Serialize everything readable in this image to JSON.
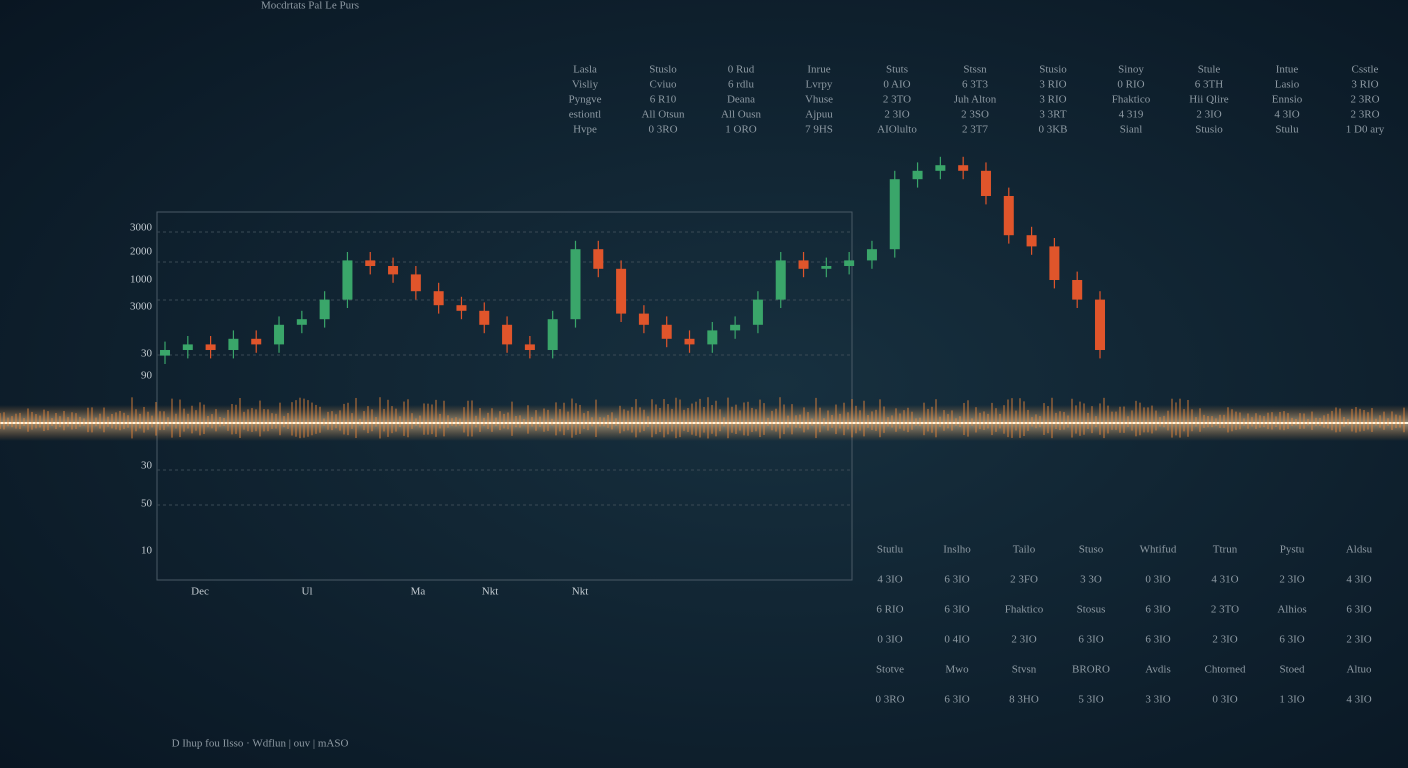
{
  "chart_data": {
    "type": "candlestick",
    "title": "Mocdrtats Pal Le Purs",
    "footer": "D Ihup fou Ilsso · Wdflun | ouv | mASO",
    "ylim": [
      0,
      100
    ],
    "up_color": "#3aa66a",
    "down_color": "#e0552b",
    "y_axis_labels": [
      "3000",
      "2000",
      "1000",
      "3000",
      "30",
      "90",
      "30",
      "50",
      "10"
    ],
    "x_axis_labels": [
      "Dec",
      "Ul",
      "Ma",
      "Nkt",
      "Nkt"
    ],
    "open": [
      23,
      25,
      27,
      25,
      29,
      27,
      34,
      36,
      43,
      57,
      55,
      52,
      46,
      41,
      39,
      34,
      27,
      25,
      36,
      61,
      54,
      38,
      34,
      29,
      27,
      32,
      34,
      43,
      57,
      54,
      55,
      57,
      61,
      86,
      89,
      91,
      89,
      80,
      66,
      62,
      50,
      43
    ],
    "high": [
      28,
      30,
      30,
      32,
      32,
      37,
      39,
      46,
      60,
      60,
      58,
      55,
      49,
      44,
      42,
      37,
      30,
      39,
      64,
      64,
      57,
      41,
      37,
      32,
      35,
      37,
      46,
      60,
      60,
      58,
      60,
      64,
      89,
      92,
      94,
      94,
      92,
      83,
      69,
      65,
      53,
      46
    ],
    "low": [
      20,
      22,
      22,
      22,
      24,
      24,
      31,
      33,
      40,
      52,
      49,
      43,
      38,
      36,
      31,
      24,
      22,
      22,
      33,
      51,
      35,
      31,
      26,
      24,
      24,
      29,
      31,
      40,
      51,
      51,
      52,
      54,
      58,
      83,
      86,
      86,
      77,
      63,
      59,
      47,
      40,
      22
    ],
    "close": [
      25,
      27,
      25,
      29,
      27,
      34,
      36,
      43,
      57,
      55,
      52,
      46,
      41,
      39,
      34,
      27,
      25,
      36,
      61,
      54,
      38,
      34,
      29,
      27,
      32,
      34,
      43,
      57,
      54,
      55,
      57,
      61,
      86,
      89,
      91,
      89,
      80,
      66,
      62,
      50,
      43,
      25
    ],
    "upper_table": [
      [
        "Lasla",
        "Stuslo",
        "0 Rud",
        "Inrue",
        "Stuts",
        "Stssn",
        "Stusio",
        "Sinoy",
        "Stule",
        "Intue",
        "Csstle"
      ],
      [
        "Visliy",
        "Cviuo",
        "6 rdlu",
        "Lvrpy",
        "0 AIO",
        "6 3T3",
        "3 RIO",
        "0 RIO",
        "6 3TH",
        "Lasio",
        "3 RIO"
      ],
      [
        "Pyngve",
        "6 R10",
        "Deana",
        "Vhuse",
        "2 3TO",
        "Juh Alton",
        "3 RIO",
        "Fhaktico",
        "Hii Qlire",
        "Ennsio",
        "2 3RO"
      ],
      [
        "estiontl",
        "All Otsun",
        "All Ousn",
        "Ajpuu",
        "2 3IO",
        "2 3SO",
        "3 3RT",
        "4 319",
        "2 3IO",
        "4 3IO",
        "2 3RO"
      ],
      [
        "Hvpe",
        "0 3RO",
        "1 ORO",
        "7 9HS",
        "AIOlulto",
        "2 3T7",
        "0 3KB",
        "Sianl",
        "Stusio",
        "Stulu",
        "1 D0 ary"
      ]
    ],
    "lower_table": [
      [
        "Stutlu",
        "Inslho",
        "Tailo",
        "Stuso",
        "Whtifud",
        "Ttrun",
        "Pystu",
        "Aldsu"
      ],
      [
        "4 3IO",
        "6 3IO",
        "2 3FO",
        "3 3O",
        "0 3IO",
        "4 31O",
        "2 3IO",
        "4 3IO"
      ],
      [
        "6 RIO",
        "6 3IO",
        "Fhaktico",
        "Stosus",
        "6 3IO",
        "2 3TO",
        "Alhios",
        "6 3IO"
      ],
      [
        "0 3IO",
        "0 4IO",
        "2 3IO",
        "6 3IO",
        "6 3IO",
        "2 3IO",
        "6 3IO",
        "2 3IO"
      ],
      [
        "Stotve",
        "Mwo",
        "Stvsn",
        "BRORO",
        "Avdis",
        "Chtorned",
        "Stoed",
        "Altuo"
      ],
      [
        "0 3RO",
        "6 3IO",
        "8 3HO",
        "5 3IO",
        "3 3IO",
        "0 3IO",
        "1 3IO",
        "4 3IO"
      ]
    ]
  }
}
